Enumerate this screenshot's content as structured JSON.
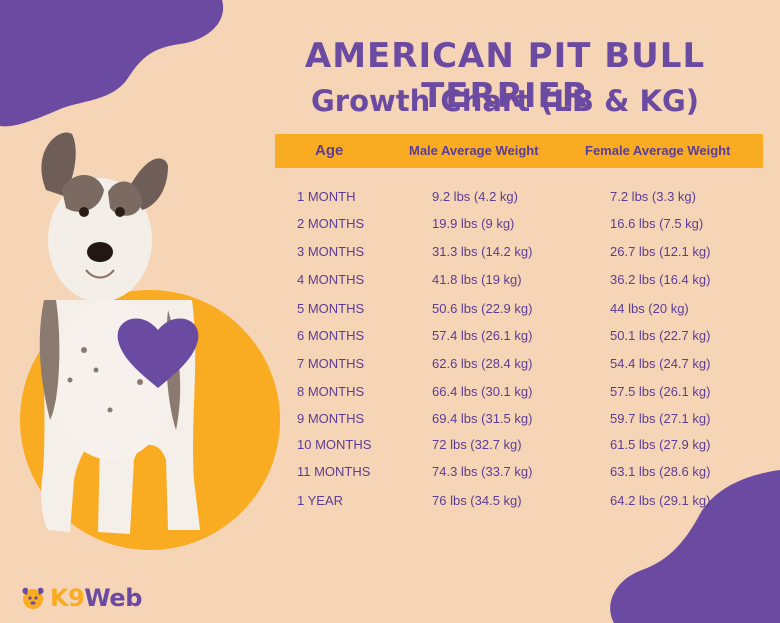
{
  "header": {
    "title": "AMERICAN PIT BULL TERRIER",
    "subtitle": "Growth Chart (LB & KG)"
  },
  "table": {
    "columns": [
      "Age",
      "Male Average Weight",
      "Female Average Weight"
    ],
    "rows": [
      {
        "age": "1 MONTH",
        "male": "9.2 lbs (4.2 kg)",
        "female": "7.2 lbs (3.3 kg)"
      },
      {
        "age": "2 MONTHS",
        "male": "19.9 lbs (9 kg)",
        "female": "16.6 lbs (7.5 kg)"
      },
      {
        "age": "3 MONTHS",
        "male": "31.3 lbs (14.2 kg)",
        "female": "26.7 lbs (12.1 kg)"
      },
      {
        "age": "4 MONTHS",
        "male": "41.8 lbs (19 kg)",
        "female": "36.2 lbs (16.4 kg)"
      },
      {
        "age": "5 MONTHS",
        "male": "50.6 lbs (22.9 kg)",
        "female": "44 lbs (20 kg)"
      },
      {
        "age": "6 MONTHS",
        "male": "57.4 lbs (26.1 kg)",
        "female": "50.1 lbs (22.7 kg)"
      },
      {
        "age": "7 MONTHS",
        "male": "62.6 lbs (28.4 kg)",
        "female": "54.4 lbs (24.7 kg)"
      },
      {
        "age": "8 MONTHS",
        "male": "66.4 lbs (30.1 kg)",
        "female": "57.5 lbs (26.1 kg)"
      },
      {
        "age": "9 MONTHS",
        "male": "69.4 lbs (31.5 kg)",
        "female": "59.7 lbs (27.1 kg)"
      },
      {
        "age": "10 MONTHS",
        "male": "72 lbs (32.7 kg)",
        "female": "61.5 lbs (27.9 kg)"
      },
      {
        "age": "11 MONTHS",
        "male": "74.3 lbs (33.7 kg)",
        "female": "63.1 lbs (28.6 kg)"
      },
      {
        "age": "1 YEAR",
        "male": "76 lbs (34.5 kg)",
        "female": "64.2 lbs (29.1 kg)"
      }
    ]
  },
  "logo": {
    "part1": "K9",
    "part2": "Web"
  },
  "icons": [
    "dog-photo",
    "heart-icon",
    "logo-dog-icon"
  ],
  "colors": {
    "background": "#f6d4b6",
    "purple": "#6b4aa2",
    "orange": "#f9ac22",
    "text": "#5c3d94"
  }
}
